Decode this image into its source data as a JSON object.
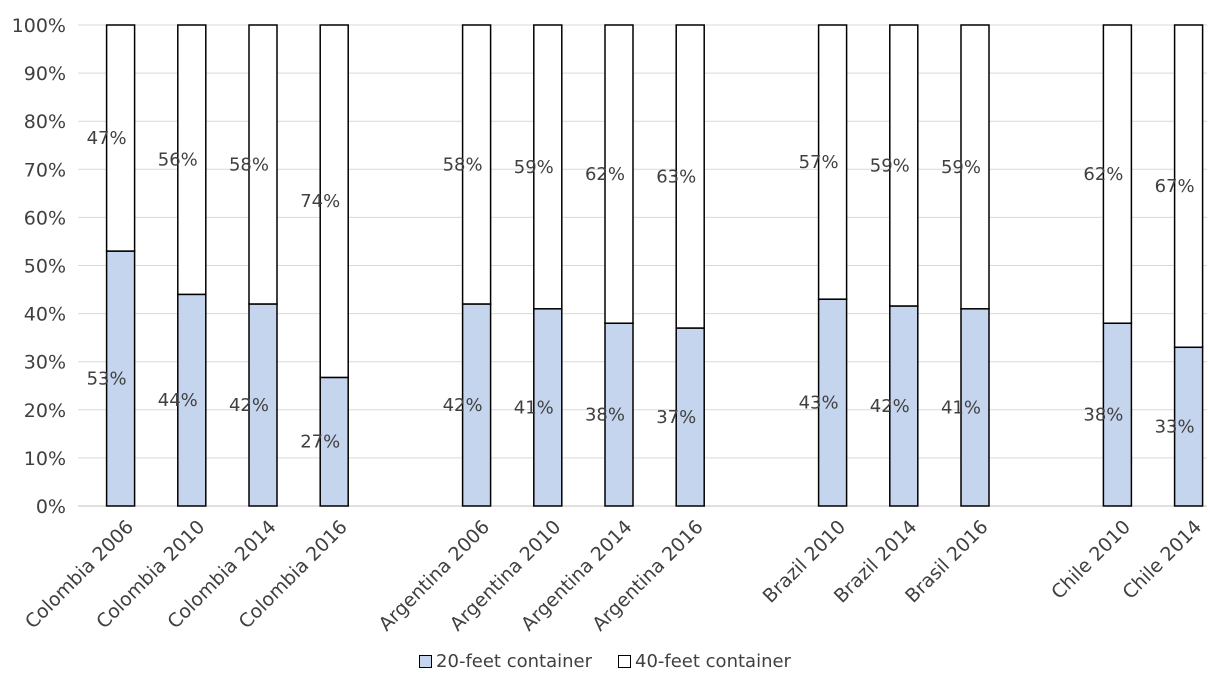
{
  "chart_data": {
    "type": "bar",
    "stacked": true,
    "percent_stacked": true,
    "categories": [
      "Colombia 2006",
      "Colombia 2010",
      "Colombia 2014",
      "Colombia 2016",
      "Argentina 2006",
      "Argentina 2010",
      "Argentina 2014",
      "Argentina 2016",
      "Brazil 2010",
      "Brazil 2014",
      "Brasil 2016",
      "Chile 2010",
      "Chile 2014"
    ],
    "series": [
      {
        "name": "20-feet container",
        "color": "#c6d5ee",
        "values": [
          53,
          44,
          42,
          27,
          42,
          41,
          38,
          37,
          43,
          42,
          41,
          38,
          33
        ],
        "labels": [
          "53%",
          "44%",
          "42%",
          "27%",
          "42%",
          "41%",
          "38%",
          "37%",
          "43%",
          "42%",
          "41%",
          "38%",
          "33%"
        ]
      },
      {
        "name": "40-feet container",
        "color": "#ffffff",
        "values": [
          47,
          56,
          58,
          74,
          58,
          59,
          62,
          63,
          57,
          59,
          59,
          62,
          67
        ],
        "labels": [
          "47%",
          "56%",
          "58%",
          "74%",
          "58%",
          "59%",
          "62%",
          "63%",
          "57%",
          "59%",
          "59%",
          "62%",
          "67%"
        ]
      }
    ],
    "yticks": [
      "0%",
      "10%",
      "20%",
      "30%",
      "40%",
      "50%",
      "60%",
      "70%",
      "80%",
      "90%",
      "100%"
    ],
    "ylim": [
      0,
      100
    ],
    "grid": true,
    "legend_position": "bottom",
    "title": "",
    "xlabel": "",
    "ylabel": ""
  }
}
